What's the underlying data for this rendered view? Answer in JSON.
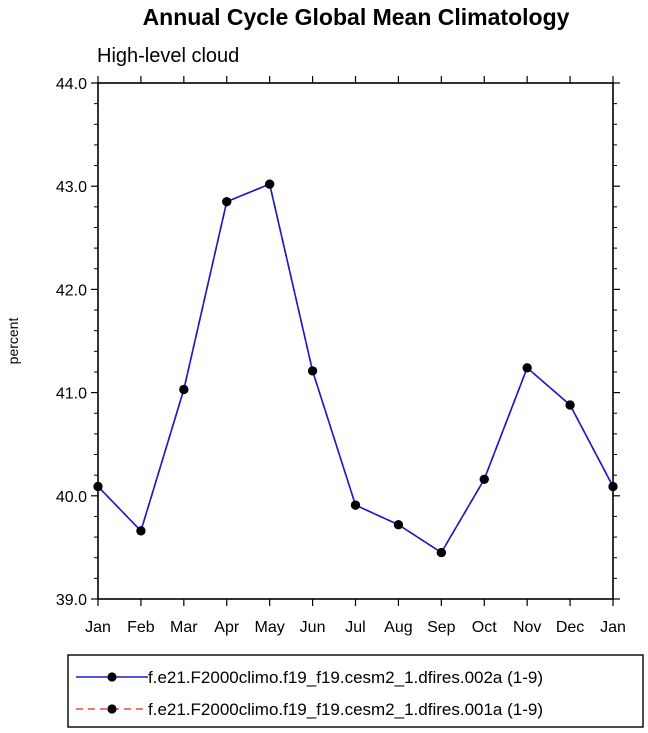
{
  "chart_data": {
    "type": "line",
    "title": "Annual Cycle Global Mean Climatology",
    "subtitle": "High-level cloud",
    "xlabel": "",
    "ylabel": "percent",
    "categories": [
      "Jan",
      "Feb",
      "Mar",
      "Apr",
      "May",
      "Jun",
      "Jul",
      "Aug",
      "Sep",
      "Oct",
      "Nov",
      "Dec",
      "Jan"
    ],
    "ylim": [
      39.0,
      44.0
    ],
    "yticks": [
      "39.0",
      "40.0",
      "41.0",
      "42.0",
      "43.0",
      "44.0"
    ],
    "grid": false,
    "legend_position": "bottom",
    "series": [
      {
        "name": "f.e21.F2000climo.f19_f19.cesm2_1.dfires.002a (1-9)",
        "color": "#1a1acc",
        "line_style": "solid",
        "marker": "filled-circle",
        "values": [
          40.09,
          39.66,
          41.03,
          42.85,
          43.02,
          41.21,
          39.91,
          39.72,
          39.45,
          40.16,
          41.24,
          40.88,
          40.09
        ]
      },
      {
        "name": "f.e21.F2000climo.f19_f19.cesm2_1.dfires.001a (1-9)",
        "color": "#e8484a",
        "line_style": "dashed",
        "marker": "filled-circle",
        "values": [
          40.09,
          39.66,
          41.03,
          42.85,
          43.02,
          41.21,
          39.91,
          39.72,
          39.45,
          40.16,
          41.24,
          40.88,
          40.09
        ]
      }
    ]
  }
}
